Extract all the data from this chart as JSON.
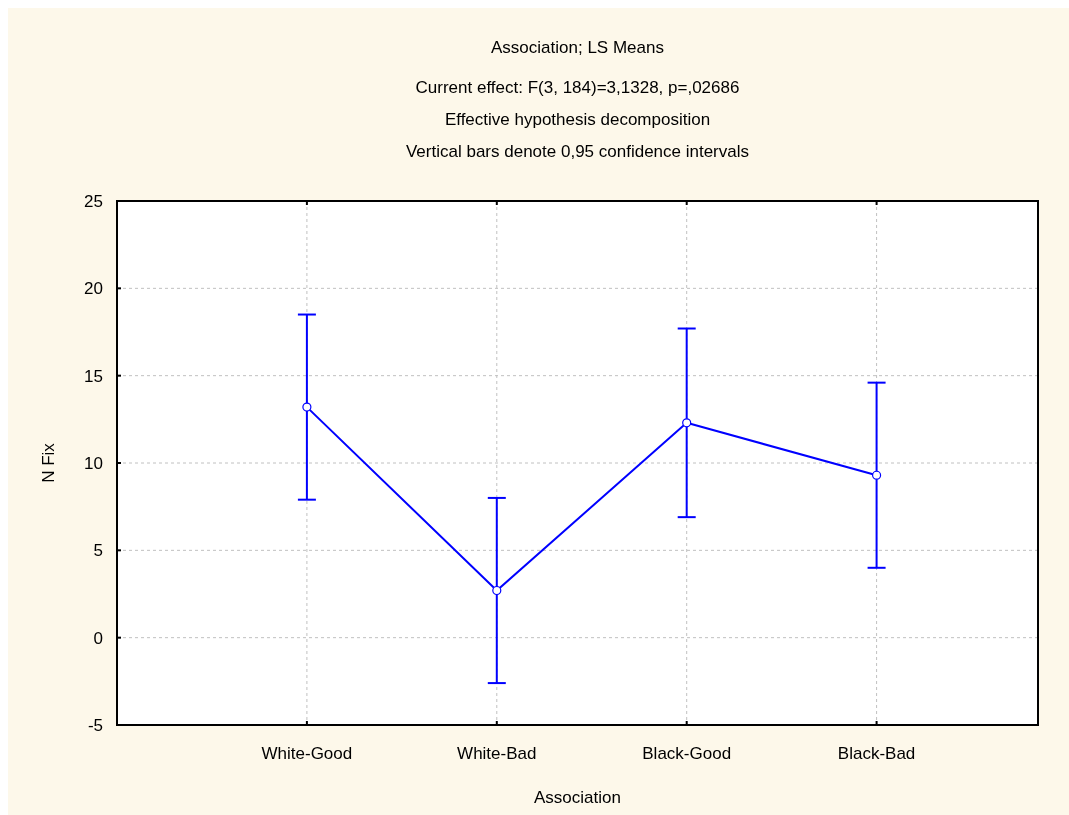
{
  "chart_data": {
    "type": "line",
    "title": "Association; LS Means",
    "subtitle": "Current effect: F(3, 184)=3,1328, p=,02686\nEffective hypothesis decomposition\nVertical bars denote 0,95 confidence intervals",
    "xlabel": "Association",
    "ylabel": "N Fix",
    "categories": [
      "White-Good",
      "White-Bad",
      "Black-Good",
      "Black-Bad"
    ],
    "series": [
      {
        "color": "#0000ff",
        "values": [
          13.2,
          2.7,
          12.3,
          9.3
        ],
        "errors": [
          5.3,
          5.3,
          5.4,
          5.3
        ]
      }
    ],
    "ylim": [
      -5,
      25
    ],
    "yticks": [
      -5,
      0,
      5,
      10,
      15,
      20,
      25
    ],
    "grid": true,
    "marker": "circle",
    "line_style": "solid"
  }
}
